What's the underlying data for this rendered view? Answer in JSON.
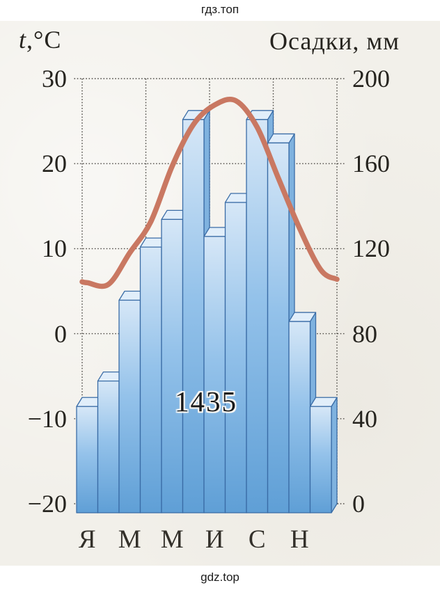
{
  "header": {
    "site": "гдз.топ"
  },
  "footer": {
    "site": "gdz.top"
  },
  "chart_data": {
    "type": "climograph (bar + line)",
    "title": "",
    "left_axis": {
      "title_italic": "t",
      "title_rest": ",°C",
      "label": "t,°C",
      "ticks": [
        30,
        20,
        10,
        0,
        -10,
        -20
      ],
      "range": [
        -20,
        30
      ],
      "unit": "°C"
    },
    "right_axis": {
      "label": "Осадки, мм",
      "ticks": [
        200,
        160,
        120,
        80,
        40,
        0
      ],
      "range": [
        0,
        200
      ],
      "unit": "мм"
    },
    "grid": {
      "style": "dotted",
      "vertical_divisions": 4,
      "horizontal_step_mm": 40
    },
    "precipitation": {
      "type": "bar",
      "unit": "мм",
      "months_count": 12,
      "monthly_values_mm": [
        50,
        62,
        100,
        125,
        138,
        185,
        130,
        146,
        185,
        174,
        90,
        50
      ],
      "annual_total_label": "1435"
    },
    "temperature": {
      "type": "line",
      "unit": "°C",
      "monthly_values_c": [
        6.0,
        5.8,
        9.5,
        13.2,
        19.7,
        24.6,
        26.9,
        27.4,
        24.3,
        18.3,
        12.4,
        7.5
      ],
      "curve_start_c": 6.1,
      "curve_end_c": 6.4
    },
    "month_tick_labels": [
      {
        "text": "Я",
        "month": 1
      },
      {
        "text": "М",
        "month": 3
      },
      {
        "text": "М",
        "month": 5
      },
      {
        "text": "И",
        "month": 7
      },
      {
        "text": "С",
        "month": 9
      },
      {
        "text": "Н",
        "month": 11
      }
    ],
    "colors": {
      "paper": "#f2f0ea",
      "bar_gradient_top": "#d6e7f7",
      "bar_gradient_mid": "#94c2ea",
      "bar_gradient_bottom": "#5f9fd6",
      "bar_top_face": "#e1eefa",
      "bar_side_face": "#7fb2df",
      "bar_outline": "#3a6ca6",
      "temperature_curve": "#c97862",
      "grid": "#4d4a45",
      "text": "#26241f"
    }
  }
}
